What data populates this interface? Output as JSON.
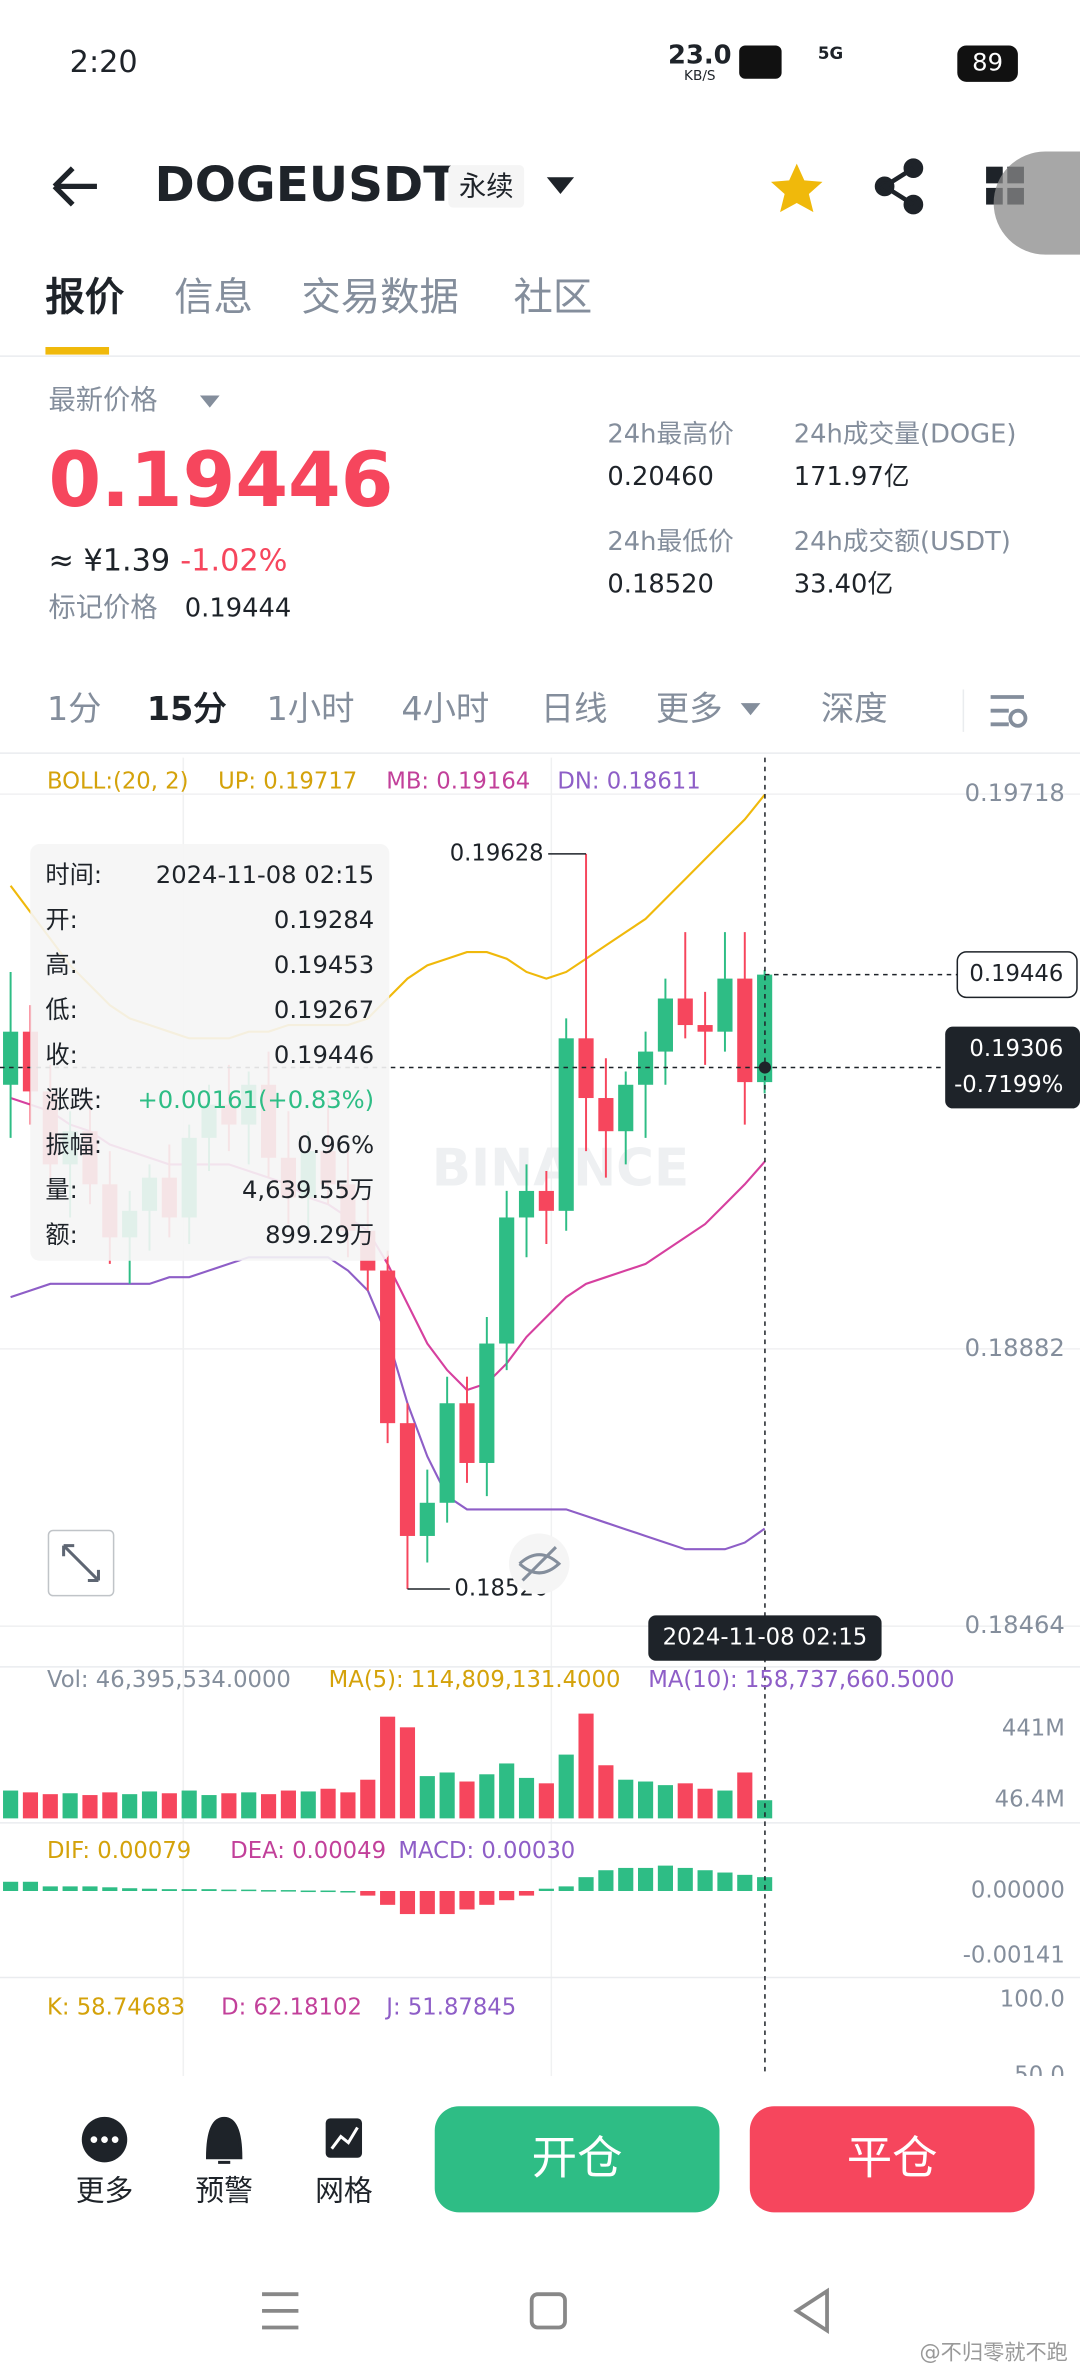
{
  "status_bar": {
    "time": "2:20",
    "speed": "23.0",
    "speed_unit": "KB/S",
    "network": "5G",
    "battery": "89"
  },
  "header": {
    "symbol": "DOGEUSDT",
    "tag": "永续"
  },
  "tabs": [
    "报价",
    "信息",
    "交易数据",
    "社区"
  ],
  "price_panel": {
    "latest_label": "最新价格",
    "last_price": "0.19446",
    "cny": "≈ ¥1.39",
    "change": "-1.02%",
    "mark_label": "标记价格",
    "mark_price": "0.19444",
    "stats": [
      {
        "label": "24h最高价",
        "value": "0.20460"
      },
      {
        "label": "24h成交量(DOGE)",
        "value": "171.97亿"
      },
      {
        "label": "24h最低价",
        "value": "0.18520"
      },
      {
        "label": "24h成交额(USDT)",
        "value": "33.40亿"
      }
    ]
  },
  "intervals": [
    "1分",
    "15分",
    "1小时",
    "4小时",
    "日线",
    "更多",
    "深度"
  ],
  "chart": {
    "type": "candlestick",
    "boll_label": "BOLL:(20, 2)",
    "up_label": "UP: 0.19717",
    "mb_label": "MB: 0.19164",
    "dn_label": "DN: 0.18611",
    "ylim": [
      0.18437,
      0.19773
    ],
    "yticks": [
      0.19718,
      0.18882,
      0.18464
    ],
    "last_price": 0.19446,
    "cursor_price": 0.19306,
    "cursor_change": "-0.7199%",
    "cursor_time": "2024-11-08 02:15",
    "high_marker": 0.19628,
    "low_marker": {
      "value": 0.1852,
      "label": "0.18520"
    },
    "watermark": "BINANCE",
    "tooltip": [
      {
        "label": "时间:",
        "value": "2024-11-08 02:15"
      },
      {
        "label": "开:",
        "value": "0.19284"
      },
      {
        "label": "高:",
        "value": "0.19453"
      },
      {
        "label": "低:",
        "value": "0.19267"
      },
      {
        "label": "收:",
        "value": "0.19446"
      },
      {
        "label": "涨跌:",
        "value": "+0.00161(+0.83%)"
      },
      {
        "label": "振幅:",
        "value": "0.96%"
      },
      {
        "label": "量:",
        "value": "4,639.55万"
      },
      {
        "label": "额:",
        "value": "899.29万"
      }
    ],
    "candles": [
      {
        "open": 0.1928,
        "high": 0.1945,
        "low": 0.192,
        "close": 0.1936
      },
      {
        "open": 0.1936,
        "high": 0.194,
        "low": 0.1922,
        "close": 0.1927
      },
      {
        "open": 0.1927,
        "high": 0.1931,
        "low": 0.1912,
        "close": 0.1916
      },
      {
        "open": 0.1916,
        "high": 0.1924,
        "low": 0.1908,
        "close": 0.1921
      },
      {
        "open": 0.1921,
        "high": 0.1926,
        "low": 0.191,
        "close": 0.1913
      },
      {
        "open": 0.1913,
        "high": 0.1918,
        "low": 0.1901,
        "close": 0.1905
      },
      {
        "open": 0.1905,
        "high": 0.1912,
        "low": 0.1898,
        "close": 0.1909
      },
      {
        "open": 0.1909,
        "high": 0.1916,
        "low": 0.1903,
        "close": 0.1914
      },
      {
        "open": 0.1914,
        "high": 0.1919,
        "low": 0.1905,
        "close": 0.1908
      },
      {
        "open": 0.1908,
        "high": 0.1922,
        "low": 0.1904,
        "close": 0.192
      },
      {
        "open": 0.192,
        "high": 0.1928,
        "low": 0.1915,
        "close": 0.1925
      },
      {
        "open": 0.1925,
        "high": 0.1931,
        "low": 0.1918,
        "close": 0.1922
      },
      {
        "open": 0.1922,
        "high": 0.193,
        "low": 0.1916,
        "close": 0.1928
      },
      {
        "open": 0.1928,
        "high": 0.1933,
        "low": 0.1914,
        "close": 0.1917
      },
      {
        "open": 0.1917,
        "high": 0.1924,
        "low": 0.1907,
        "close": 0.1911
      },
      {
        "open": 0.1911,
        "high": 0.1921,
        "low": 0.1906,
        "close": 0.1918
      },
      {
        "open": 0.1918,
        "high": 0.1926,
        "low": 0.191,
        "close": 0.1913
      },
      {
        "open": 0.1913,
        "high": 0.1919,
        "low": 0.1902,
        "close": 0.1906
      },
      {
        "open": 0.1906,
        "high": 0.1911,
        "low": 0.1897,
        "close": 0.19
      },
      {
        "open": 0.19,
        "high": 0.1903,
        "low": 0.1874,
        "close": 0.1877
      },
      {
        "open": 0.1877,
        "high": 0.188,
        "low": 0.1852,
        "close": 0.186
      },
      {
        "open": 0.186,
        "high": 0.187,
        "low": 0.1856,
        "close": 0.1865
      },
      {
        "open": 0.1865,
        "high": 0.1884,
        "low": 0.1862,
        "close": 0.188
      },
      {
        "open": 0.188,
        "high": 0.1884,
        "low": 0.1868,
        "close": 0.1871
      },
      {
        "open": 0.1871,
        "high": 0.1893,
        "low": 0.1866,
        "close": 0.1889
      },
      {
        "open": 0.1889,
        "high": 0.1912,
        "low": 0.1885,
        "close": 0.1908
      },
      {
        "open": 0.1908,
        "high": 0.1916,
        "low": 0.1902,
        "close": 0.1912
      },
      {
        "open": 0.1912,
        "high": 0.1915,
        "low": 0.1904,
        "close": 0.1909
      },
      {
        "open": 0.1909,
        "high": 0.1938,
        "low": 0.1906,
        "close": 0.1935
      },
      {
        "open": 0.1935,
        "high": 0.19628,
        "low": 0.1918,
        "close": 0.1926
      },
      {
        "open": 0.1926,
        "high": 0.1932,
        "low": 0.1914,
        "close": 0.1921
      },
      {
        "open": 0.1921,
        "high": 0.193,
        "low": 0.1916,
        "close": 0.1928
      },
      {
        "open": 0.1928,
        "high": 0.1936,
        "low": 0.192,
        "close": 0.1933
      },
      {
        "open": 0.1933,
        "high": 0.1944,
        "low": 0.1928,
        "close": 0.1941
      },
      {
        "open": 0.1941,
        "high": 0.1951,
        "low": 0.1935,
        "close": 0.1937
      },
      {
        "open": 0.1937,
        "high": 0.1942,
        "low": 0.1931,
        "close": 0.1936
      },
      {
        "open": 0.1936,
        "high": 0.1951,
        "low": 0.1933,
        "close": 0.1944
      },
      {
        "open": 0.1944,
        "high": 0.1951,
        "low": 0.1922,
        "close": 0.19284
      },
      {
        "open": 0.19284,
        "high": 0.19453,
        "low": 0.19267,
        "close": 0.19446
      }
    ],
    "boll": {
      "up_color": "#f0b90b",
      "mb_color": "#d6409f",
      "dn_color": "#8e5ec7",
      "up": [
        0.1958,
        0.1954,
        0.195,
        0.1946,
        0.1943,
        0.194,
        0.1938,
        0.1937,
        0.1936,
        0.1935,
        0.1935,
        0.1935,
        0.1936,
        0.1936,
        0.1937,
        0.1937,
        0.1937,
        0.1937,
        0.1938,
        0.1941,
        0.1944,
        0.1946,
        0.1947,
        0.1948,
        0.1948,
        0.1947,
        0.1945,
        0.1944,
        0.1945,
        0.1947,
        0.1949,
        0.1951,
        0.1953,
        0.1956,
        0.1959,
        0.1962,
        0.1965,
        0.1968,
        0.19717
      ],
      "mb": [
        0.1926,
        0.1925,
        0.1924,
        0.1922,
        0.1921,
        0.1919,
        0.1918,
        0.1917,
        0.1916,
        0.1916,
        0.1916,
        0.1916,
        0.1915,
        0.1914,
        0.1913,
        0.1911,
        0.191,
        0.1908,
        0.1906,
        0.1901,
        0.1895,
        0.1889,
        0.1885,
        0.1882,
        0.1883,
        0.1886,
        0.189,
        0.1893,
        0.1896,
        0.1898,
        0.1899,
        0.19,
        0.1901,
        0.1903,
        0.1905,
        0.1907,
        0.191,
        0.1913,
        0.19164
      ],
      "dn": [
        0.1896,
        0.1897,
        0.1898,
        0.1898,
        0.1898,
        0.1898,
        0.1898,
        0.1898,
        0.1899,
        0.1899,
        0.19,
        0.1901,
        0.1902,
        0.1902,
        0.1902,
        0.1902,
        0.1902,
        0.19,
        0.1897,
        0.189,
        0.188,
        0.1872,
        0.1866,
        0.1864,
        0.1864,
        0.1864,
        0.1864,
        0.1864,
        0.1864,
        0.1863,
        0.1862,
        0.1861,
        0.186,
        0.1859,
        0.1858,
        0.1858,
        0.1858,
        0.1859,
        0.18611
      ]
    }
  },
  "volume": {
    "vol_label": "Vol: 46,395,534.0000",
    "ma5_label": "MA(5): 114,809,131.4000",
    "ma10_label": "MA(10): 158,737,660.5000",
    "ylim": [
      -54000000,
      550000000
    ],
    "yticks": [
      {
        "value": 441000000,
        "label": "441M"
      },
      {
        "value": 46400000,
        "label": "46.4M"
      }
    ],
    "values": [
      100000000,
      90000000,
      80000000,
      85000000,
      75000000,
      90000000,
      80000000,
      95000000,
      85000000,
      100000000,
      75000000,
      85000000,
      90000000,
      80000000,
      100000000,
      95000000,
      110000000,
      90000000,
      160000000,
      509000000,
      450000000,
      180000000,
      200000000,
      150000000,
      190000000,
      250000000,
      170000000,
      140000000,
      299000000,
      526000000,
      240000000,
      160000000,
      150000000,
      130000000,
      140000000,
      110000000,
      100000000,
      200000000,
      46395534
    ]
  },
  "macd": {
    "dif_label": "DIF: 0.00079",
    "dea_label": "DEA: 0.00049",
    "macd_label": "MACD: 0.00030",
    "ylim": [
      -0.00171,
      0.00118
    ],
    "yticks": [
      {
        "value": 0,
        "label": "0.00000"
      },
      {
        "value": -0.00141,
        "label": "-0.00141"
      }
    ],
    "hist": [
      0.0002,
      0.0002,
      0.0001,
      0.0001,
      0.0001,
      8e-05,
      6e-05,
      5e-05,
      4e-05,
      4e-05,
      4e-05,
      3e-05,
      3e-05,
      2e-05,
      2e-05,
      1e-05,
      1e-05,
      0,
      -0.0001,
      -0.0003,
      -0.0005,
      -0.0005,
      -0.0005,
      -0.0004,
      -0.0003,
      -0.0002,
      -0.0001,
      5e-05,
      0.0001,
      0.0003,
      0.00045,
      0.0005,
      0.0005,
      0.00055,
      0.0005,
      0.00045,
      0.0004,
      0.00035,
      0.0003
    ]
  },
  "kdj": {
    "k_label": "K: 58.74683",
    "d_label": "D: 62.18102",
    "j_label": "J: 51.87845",
    "ylim": [
      40,
      110
    ],
    "yticks": [
      {
        "value": 100,
        "label": "100.0"
      },
      {
        "value": 50,
        "label": "50.0"
      }
    ]
  },
  "bottom_bar": {
    "items": [
      "更多",
      "预警",
      "网格"
    ],
    "open_button": "开仓",
    "close_button": "平仓"
  },
  "watermark_user": "@不归零就不跑"
}
